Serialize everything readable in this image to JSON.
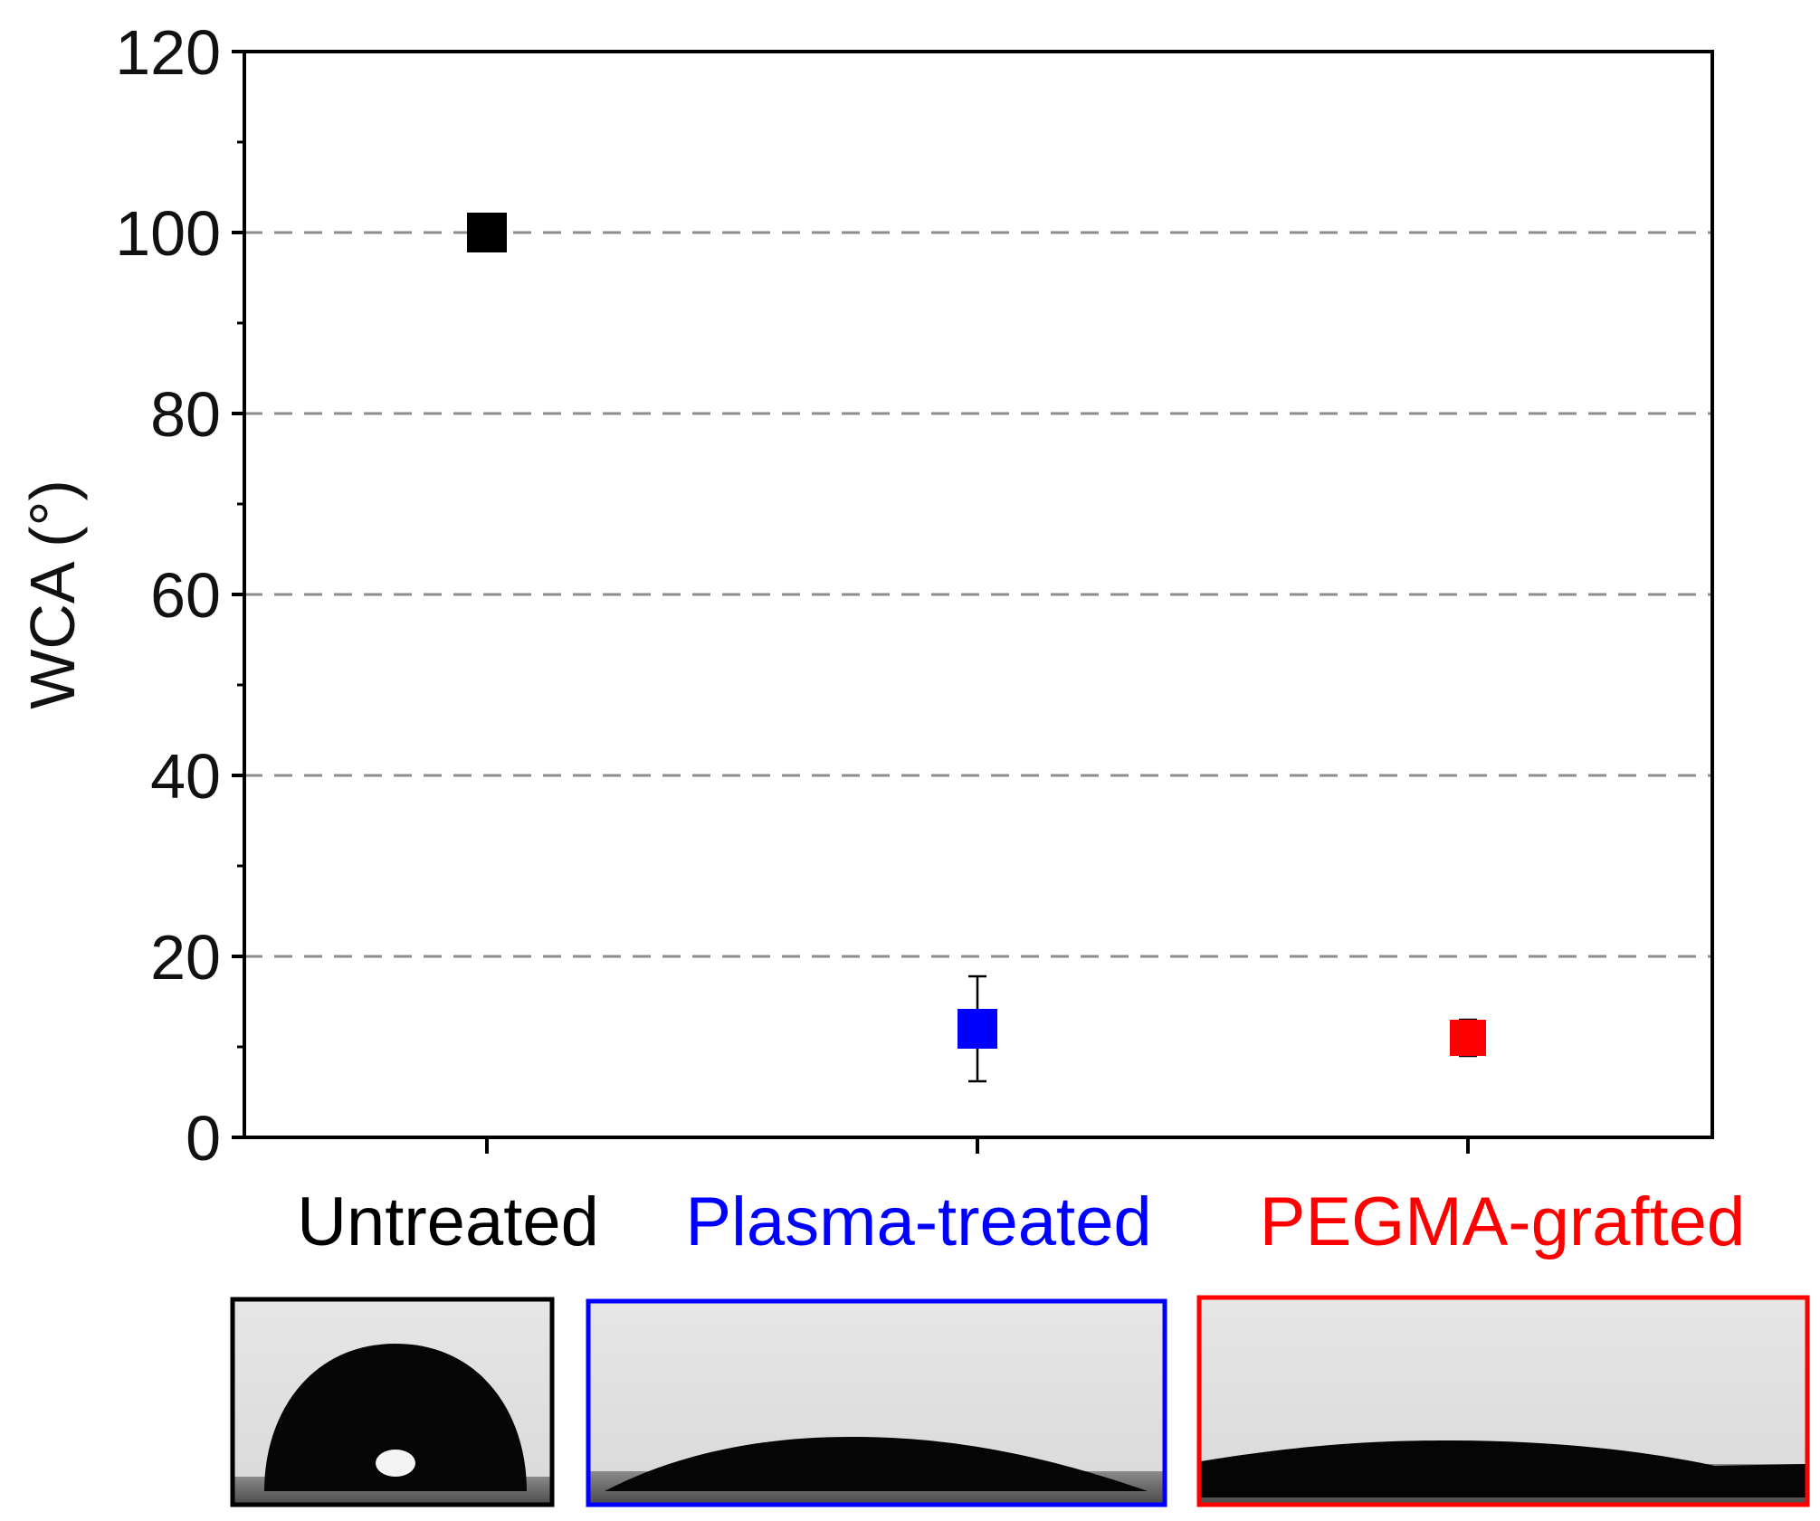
{
  "chart_data": {
    "type": "scatter",
    "title": "",
    "xlabel": "",
    "ylabel": "WCA (°)",
    "ylim": [
      0,
      120
    ],
    "yticks": [
      0,
      20,
      40,
      60,
      80,
      100,
      120
    ],
    "grid": "dashed horizontal lines at 20, 40, 60, 80, 100",
    "categories": [
      "Untreated",
      "Plasma-treated",
      "PEGMA-grafted"
    ],
    "points": [
      {
        "category": "Untreated",
        "value": 100,
        "error": 1.5,
        "color": "#000000"
      },
      {
        "category": "Plasma-treated",
        "value": 12,
        "error": 5.8,
        "color": "#0000ff"
      },
      {
        "category": "PEGMA-grafted",
        "value": 11,
        "error": 2,
        "color": "#ff0000"
      }
    ]
  },
  "droplet_images": [
    {
      "category": "Untreated",
      "frame_color": "#000000",
      "icon": "droplet-photo-high-contact-angle"
    },
    {
      "category": "Plasma-treated",
      "frame_color": "#0000ff",
      "icon": "droplet-photo-low-contact-angle"
    },
    {
      "category": "PEGMA-grafted",
      "frame_color": "#ff0000",
      "icon": "droplet-photo-low-contact-angle"
    }
  ]
}
